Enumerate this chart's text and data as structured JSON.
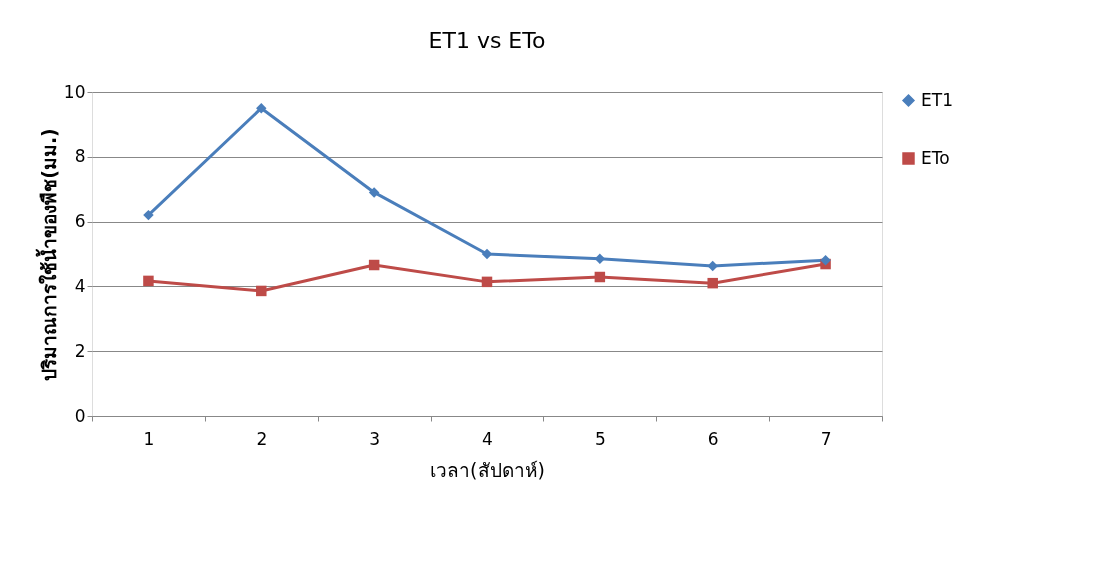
{
  "chart_data": {
    "type": "line",
    "title": "ET1 vs ETo",
    "xlabel": "เวลา(สัปดาห์)",
    "ylabel": "ปริมาณการใช้น้ำของพืช(มม.)",
    "categories": [
      "1",
      "2",
      "3",
      "4",
      "5",
      "6",
      "7"
    ],
    "series": [
      {
        "name": "ET1",
        "color": "#4a7ebb",
        "marker": "diamond",
        "values": [
          6.2,
          9.5,
          6.9,
          5.0,
          4.85,
          4.63,
          4.81
        ]
      },
      {
        "name": "ETo",
        "color": "#be4b48",
        "marker": "square",
        "values": [
          4.17,
          3.86,
          4.66,
          4.14,
          4.29,
          4.1,
          4.69
        ]
      }
    ],
    "ylim": [
      0,
      10
    ],
    "yticks": [
      0,
      2,
      4,
      6,
      8,
      10
    ],
    "grid": "y",
    "legend": "right"
  }
}
